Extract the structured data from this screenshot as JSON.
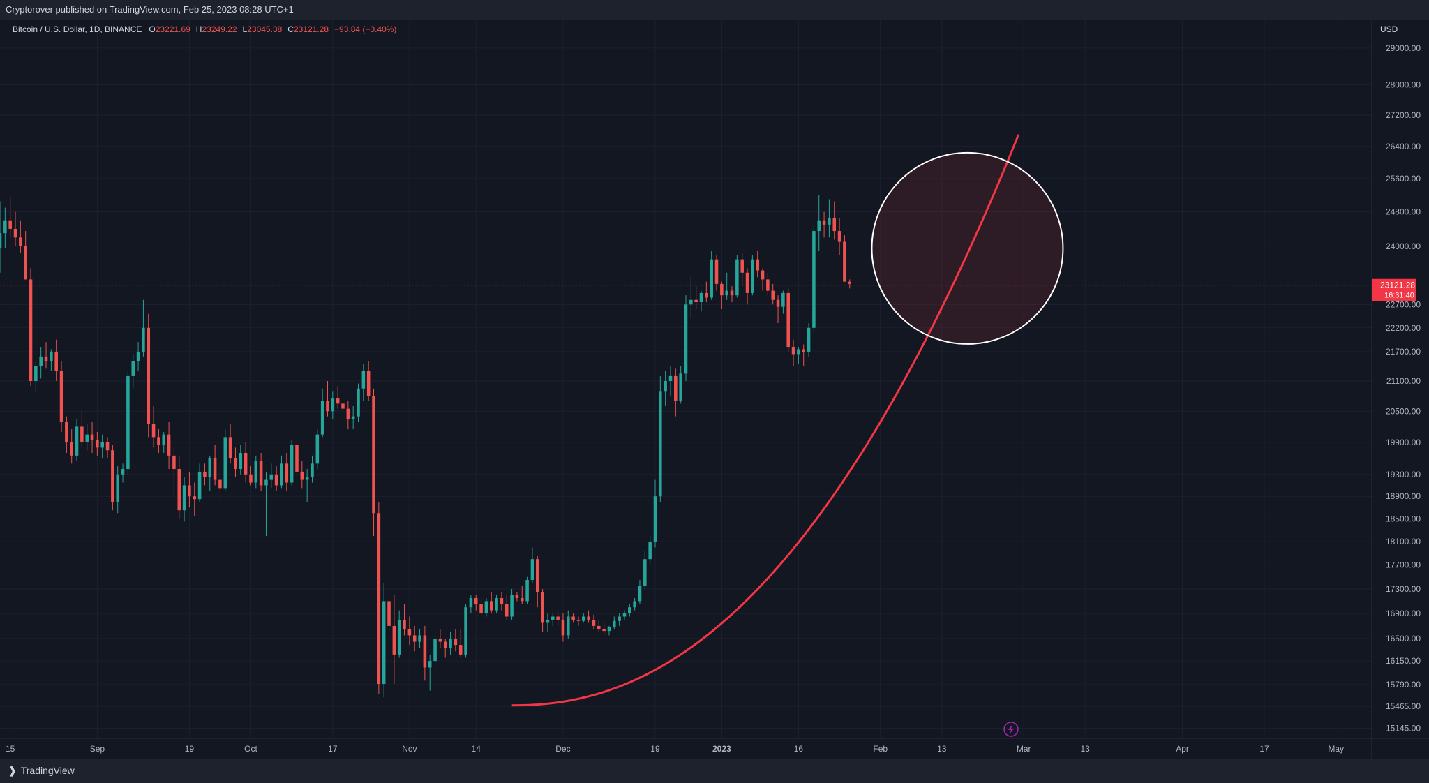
{
  "header": {
    "published_text": "Cryptorover published on TradingView.com, Feb 25, 2023 08:28 UTC+1"
  },
  "legend": {
    "symbol": "Bitcoin / U.S. Dollar, 1D, BINANCE",
    "open_label": "O",
    "open": "23221.69",
    "high_label": "H",
    "high": "23249.22",
    "low_label": "L",
    "low": "23045.38",
    "close_label": "C",
    "close": "23121.28",
    "change": "−93.84 (−0.40%)"
  },
  "price_axis": {
    "currency": "USD",
    "current_price": "23121.28",
    "countdown": "16:31:40"
  },
  "footer": {
    "brand": "TradingView"
  },
  "colors": {
    "up": "#26a69a",
    "down": "#ef5350",
    "arc": "#f23645",
    "circle": "#ffffff",
    "background": "#131722"
  },
  "chart_data": {
    "type": "candlestick",
    "symbol": "BTCUSD",
    "interval": "1D",
    "y_scale": "log",
    "ylim": [
      15000,
      29800
    ],
    "y_ticks": [
      29000,
      28000,
      27200,
      26400,
      25600,
      24800,
      24000,
      22700,
      22200,
      21700,
      21100,
      20500,
      19900,
      19300,
      18900,
      18500,
      18100,
      17700,
      17300,
      16900,
      16500,
      16150,
      15790,
      15465,
      15145
    ],
    "y_tick_labels": [
      "29000.00",
      "28000.00",
      "27200.00",
      "26400.00",
      "25600.00",
      "24800.00",
      "24000.00",
      "22700.00",
      "22200.00",
      "21700.00",
      "21100.00",
      "20500.00",
      "19900.00",
      "19300.00",
      "18900.00",
      "18500.00",
      "18100.00",
      "17700.00",
      "17300.00",
      "16900.00",
      "16500.00",
      "16150.00",
      "15790.00",
      "15465.00",
      "15145.00"
    ],
    "x_start": "2022-08-13",
    "x_range": [
      "2022-08-13",
      "2023-05-08"
    ],
    "x_ticks": [
      {
        "date": "2022-08-15",
        "label": "15"
      },
      {
        "date": "2022-09-01",
        "label": "Sep"
      },
      {
        "date": "2022-09-19",
        "label": "19"
      },
      {
        "date": "2022-10-01",
        "label": "Oct"
      },
      {
        "date": "2022-10-17",
        "label": "17"
      },
      {
        "date": "2022-11-01",
        "label": "Nov"
      },
      {
        "date": "2022-11-14",
        "label": "14"
      },
      {
        "date": "2022-12-01",
        "label": "Dec"
      },
      {
        "date": "2022-12-19",
        "label": "19"
      },
      {
        "date": "2023-01-01",
        "label": "2023"
      },
      {
        "date": "2023-01-16",
        "label": "16"
      },
      {
        "date": "2023-02-01",
        "label": "Feb"
      },
      {
        "date": "2023-02-13",
        "label": "13"
      },
      {
        "date": "2023-03-01",
        "label": "Mar"
      },
      {
        "date": "2023-03-13",
        "label": "13"
      },
      {
        "date": "2023-04-01",
        "label": "Apr"
      },
      {
        "date": "2023-04-17",
        "label": "17"
      },
      {
        "date": "2023-05-01",
        "label": "May"
      }
    ],
    "ohlc": [
      [
        23950,
        25050,
        23400,
        24300
      ],
      [
        24300,
        24900,
        23950,
        24600
      ],
      [
        24600,
        25150,
        24200,
        24400
      ],
      [
        24400,
        24800,
        24000,
        24200
      ],
      [
        24200,
        24600,
        23850,
        24000
      ],
      [
        24000,
        24350,
        23250,
        23250
      ],
      [
        23250,
        23500,
        21000,
        21100
      ],
      [
        21100,
        21500,
        20900,
        21400
      ],
      [
        21400,
        21800,
        21150,
        21600
      ],
      [
        21600,
        21900,
        21350,
        21500
      ],
      [
        21500,
        21750,
        21300,
        21700
      ],
      [
        21700,
        21950,
        21100,
        21300
      ],
      [
        21300,
        21500,
        20100,
        20300
      ],
      [
        20300,
        20400,
        19700,
        19900
      ],
      [
        19900,
        20150,
        19500,
        19650
      ],
      [
        19650,
        20350,
        19550,
        20200
      ],
      [
        20200,
        20500,
        19800,
        19900
      ],
      [
        19900,
        20250,
        19750,
        20050
      ],
      [
        20050,
        20300,
        19700,
        19950
      ],
      [
        19950,
        20100,
        19650,
        19800
      ],
      [
        19800,
        20050,
        19600,
        19900
      ],
      [
        19900,
        20000,
        19600,
        19750
      ],
      [
        19750,
        19850,
        18650,
        18800
      ],
      [
        18800,
        19450,
        18600,
        19300
      ],
      [
        19300,
        19500,
        19150,
        19400
      ],
      [
        19400,
        21300,
        19300,
        21200
      ],
      [
        21200,
        21650,
        20950,
        21500
      ],
      [
        21500,
        21900,
        21300,
        21700
      ],
      [
        21700,
        22800,
        21600,
        22200
      ],
      [
        22200,
        22500,
        20000,
        20250
      ],
      [
        20250,
        20600,
        19800,
        20000
      ],
      [
        20000,
        20150,
        19700,
        19850
      ],
      [
        19850,
        20100,
        19700,
        20050
      ],
      [
        20050,
        20300,
        19400,
        19650
      ],
      [
        19650,
        19800,
        18900,
        19400
      ],
      [
        19400,
        19650,
        18500,
        18650
      ],
      [
        18650,
        19250,
        18450,
        19100
      ],
      [
        19100,
        19350,
        18700,
        18900
      ],
      [
        18900,
        19150,
        18550,
        18850
      ],
      [
        18850,
        19500,
        18800,
        19350
      ],
      [
        19350,
        19500,
        19100,
        19250
      ],
      [
        19250,
        19650,
        19000,
        19600
      ],
      [
        19600,
        19850,
        19100,
        19200
      ],
      [
        19200,
        19400,
        18850,
        19050
      ],
      [
        19050,
        20150,
        19000,
        20000
      ],
      [
        20000,
        20250,
        19500,
        19600
      ],
      [
        19600,
        19800,
        19250,
        19400
      ],
      [
        19400,
        19850,
        19300,
        19700
      ],
      [
        19700,
        19900,
        19150,
        19300
      ],
      [
        19300,
        19450,
        19100,
        19150
      ],
      [
        19150,
        19650,
        19050,
        19550
      ],
      [
        19550,
        19700,
        19000,
        19100
      ],
      [
        19100,
        19350,
        18200,
        19200
      ],
      [
        19200,
        19500,
        19050,
        19300
      ],
      [
        19300,
        19450,
        19000,
        19100
      ],
      [
        19100,
        19650,
        19050,
        19500
      ],
      [
        19500,
        19700,
        19000,
        19150
      ],
      [
        19150,
        19950,
        19100,
        19850
      ],
      [
        19850,
        20050,
        19200,
        19350
      ],
      [
        19350,
        19550,
        19050,
        19200
      ],
      [
        19200,
        19400,
        18800,
        19250
      ],
      [
        19250,
        19650,
        19150,
        19500
      ],
      [
        19500,
        20150,
        19400,
        20050
      ],
      [
        20050,
        20950,
        20000,
        20700
      ],
      [
        20700,
        21100,
        20400,
        20500
      ],
      [
        20500,
        20900,
        20350,
        20750
      ],
      [
        20750,
        21000,
        20550,
        20650
      ],
      [
        20650,
        20900,
        20350,
        20550
      ],
      [
        20550,
        20700,
        20150,
        20350
      ],
      [
        20350,
        20600,
        20150,
        20400
      ],
      [
        20400,
        21050,
        20300,
        20950
      ],
      [
        20950,
        21450,
        20700,
        21300
      ],
      [
        21300,
        21500,
        20700,
        20800
      ],
      [
        20800,
        20950,
        18200,
        18600
      ],
      [
        18600,
        18800,
        15650,
        15800
      ],
      [
        15800,
        17400,
        15600,
        17100
      ],
      [
        17100,
        17250,
        16500,
        16700
      ],
      [
        16700,
        17200,
        15800,
        16250
      ],
      [
        16250,
        16950,
        16200,
        16800
      ],
      [
        16800,
        17050,
        16550,
        16650
      ],
      [
        16650,
        16850,
        16400,
        16550
      ],
      [
        16550,
        16700,
        16300,
        16450
      ],
      [
        16450,
        16650,
        16350,
        16550
      ],
      [
        16550,
        16700,
        15850,
        16050
      ],
      [
        16050,
        16250,
        15700,
        16150
      ],
      [
        16150,
        16600,
        16000,
        16500
      ],
      [
        16500,
        16650,
        16350,
        16450
      ],
      [
        16450,
        16500,
        16200,
        16350
      ],
      [
        16350,
        16600,
        16250,
        16500
      ],
      [
        16500,
        16650,
        16300,
        16400
      ],
      [
        16400,
        16650,
        16200,
        16250
      ],
      [
        16250,
        17050,
        16200,
        17000
      ],
      [
        17000,
        17200,
        16900,
        17150
      ],
      [
        17150,
        17200,
        16950,
        17050
      ],
      [
        17050,
        17150,
        16850,
        16900
      ],
      [
        16900,
        17150,
        16850,
        17100
      ],
      [
        17100,
        17250,
        16900,
        16950
      ],
      [
        16950,
        17200,
        16900,
        17150
      ],
      [
        17150,
        17250,
        16950,
        17050
      ],
      [
        17050,
        17200,
        16800,
        16850
      ],
      [
        16850,
        17300,
        16800,
        17200
      ],
      [
        17200,
        17250,
        17100,
        17150
      ],
      [
        17150,
        17350,
        17050,
        17100
      ],
      [
        17100,
        17500,
        17050,
        17450
      ],
      [
        17450,
        18000,
        17400,
        17800
      ],
      [
        17800,
        17850,
        17000,
        17250
      ],
      [
        17250,
        17300,
        16600,
        16750
      ],
      [
        16750,
        16900,
        16600,
        16800
      ],
      [
        16800,
        16900,
        16700,
        16850
      ],
      [
        16850,
        16950,
        16700,
        16800
      ],
      [
        16800,
        16900,
        16450,
        16550
      ],
      [
        16550,
        16950,
        16500,
        16850
      ],
      [
        16850,
        16900,
        16750,
        16800
      ],
      [
        16800,
        16850,
        16700,
        16780
      ],
      [
        16780,
        16900,
        16750,
        16850
      ],
      [
        16850,
        16950,
        16750,
        16800
      ],
      [
        16800,
        16880,
        16650,
        16700
      ],
      [
        16700,
        16800,
        16600,
        16650
      ],
      [
        16650,
        16750,
        16550,
        16620
      ],
      [
        16620,
        16700,
        16550,
        16680
      ],
      [
        16680,
        16850,
        16650,
        16780
      ],
      [
        16780,
        16900,
        16700,
        16850
      ],
      [
        16850,
        16950,
        16800,
        16900
      ],
      [
        16900,
        17050,
        16850,
        17000
      ],
      [
        17000,
        17150,
        16950,
        17100
      ],
      [
        17100,
        17450,
        17050,
        17350
      ],
      [
        17350,
        17950,
        17300,
        17800
      ],
      [
        17800,
        18200,
        17700,
        18100
      ],
      [
        18100,
        19200,
        18000,
        18900
      ],
      [
        18900,
        21200,
        18800,
        20900
      ],
      [
        20900,
        21300,
        20600,
        21100
      ],
      [
        21100,
        21400,
        20800,
        21200
      ],
      [
        21200,
        21350,
        20400,
        20700
      ],
      [
        20700,
        21400,
        20650,
        21250
      ],
      [
        21250,
        22900,
        21100,
        22700
      ],
      [
        22700,
        23300,
        22400,
        22800
      ],
      [
        22800,
        23100,
        22600,
        22750
      ],
      [
        22750,
        23000,
        22550,
        22950
      ],
      [
        22950,
        23200,
        22750,
        22850
      ],
      [
        22850,
        23900,
        22800,
        23700
      ],
      [
        23700,
        23800,
        23000,
        23150
      ],
      [
        23150,
        23200,
        22600,
        22900
      ],
      [
        22900,
        23400,
        22800,
        23000
      ],
      [
        23000,
        23100,
        22750,
        22900
      ],
      [
        22900,
        23800,
        22850,
        23700
      ],
      [
        23700,
        23850,
        23100,
        23400
      ],
      [
        23400,
        23500,
        22700,
        22950
      ],
      [
        22950,
        23800,
        22900,
        23700
      ],
      [
        23700,
        23900,
        23300,
        23450
      ],
      [
        23450,
        23500,
        23000,
        23250
      ],
      [
        23250,
        23400,
        22900,
        23000
      ],
      [
        23000,
        23150,
        22700,
        22800
      ],
      [
        22800,
        22900,
        22300,
        22650
      ],
      [
        22650,
        23000,
        22500,
        22950
      ],
      [
        22950,
        23050,
        21700,
        21800
      ],
      [
        21800,
        21950,
        21400,
        21650
      ],
      [
        21650,
        21800,
        21450,
        21750
      ],
      [
        21750,
        21850,
        21400,
        21700
      ],
      [
        21700,
        22300,
        21600,
        22200
      ],
      [
        22200,
        24500,
        22100,
        24350
      ],
      [
        24350,
        25200,
        23900,
        24600
      ],
      [
        24600,
        24800,
        24200,
        24500
      ],
      [
        24500,
        25100,
        24200,
        24650
      ],
      [
        24650,
        25050,
        24150,
        24350
      ],
      [
        24350,
        24650,
        23800,
        24100
      ],
      [
        24100,
        24250,
        23200,
        23200
      ],
      [
        23200,
        23250,
        23050,
        23150
      ]
    ],
    "overlays": [
      {
        "type": "parabolic-curve",
        "from": {
          "date": "2022-11-21",
          "price": 15480
        },
        "to": {
          "date": "2023-02-28",
          "price": 26700
        }
      },
      {
        "type": "circle",
        "center": {
          "date": "2023-02-18",
          "price": 23950
        }
      }
    ]
  }
}
